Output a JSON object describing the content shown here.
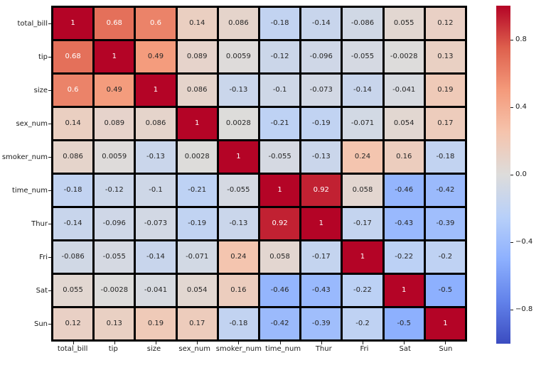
{
  "chart_data": {
    "type": "heatmap",
    "title": "",
    "xlabel": "",
    "ylabel": "",
    "labels": [
      "total_bill",
      "tip",
      "size",
      "sex_num",
      "smoker_num",
      "time_num",
      "Thur",
      "Fri",
      "Sat",
      "Sun"
    ],
    "matrix": [
      [
        1,
        0.68,
        0.6,
        0.14,
        0.086,
        -0.18,
        -0.14,
        -0.086,
        0.055,
        0.12
      ],
      [
        0.68,
        1,
        0.49,
        0.089,
        0.0059,
        -0.12,
        -0.096,
        -0.055,
        -0.0028,
        0.13
      ],
      [
        0.6,
        0.49,
        1,
        0.086,
        -0.13,
        -0.1,
        -0.073,
        -0.14,
        -0.041,
        0.19
      ],
      [
        0.14,
        0.089,
        0.086,
        1,
        0.0028,
        -0.21,
        -0.19,
        -0.071,
        0.054,
        0.17
      ],
      [
        0.086,
        0.0059,
        -0.13,
        0.0028,
        1,
        -0.055,
        -0.13,
        0.24,
        0.16,
        -0.18
      ],
      [
        -0.18,
        -0.12,
        -0.1,
        -0.21,
        -0.055,
        1,
        0.92,
        0.058,
        -0.46,
        -0.42
      ],
      [
        -0.14,
        -0.096,
        -0.073,
        -0.19,
        -0.13,
        0.92,
        1,
        -0.17,
        -0.43,
        -0.39
      ],
      [
        -0.086,
        -0.055,
        -0.14,
        -0.071,
        0.24,
        0.058,
        -0.17,
        1,
        -0.22,
        -0.2
      ],
      [
        0.055,
        -0.0028,
        -0.041,
        0.054,
        0.16,
        -0.46,
        -0.43,
        -0.22,
        1,
        -0.5
      ],
      [
        0.12,
        0.13,
        0.19,
        0.17,
        -0.18,
        -0.42,
        -0.39,
        -0.2,
        -0.5,
        1
      ]
    ],
    "vmin": -1,
    "vmax": 1,
    "colormap": "coolwarm",
    "colormap_anchors": [
      {
        "t": 0.0,
        "color": "#3b4cc0"
      },
      {
        "t": 0.125,
        "color": "#6282ea"
      },
      {
        "t": 0.25,
        "color": "#8db0fe"
      },
      {
        "t": 0.375,
        "color": "#b8d0f9"
      },
      {
        "t": 0.5,
        "color": "#dddcdb"
      },
      {
        "t": 0.625,
        "color": "#f5c4ad"
      },
      {
        "t": 0.75,
        "color": "#f49a7b"
      },
      {
        "t": 0.875,
        "color": "#de604d"
      },
      {
        "t": 1.0,
        "color": "#b40426"
      }
    ],
    "grid_line_color": "#000000",
    "grid_line_width": 3,
    "annotation_colors": {
      "dark": "#262626",
      "light": "#ffffff"
    },
    "legend_position": "right-colorbar",
    "colorbar": {
      "ticks": [
        {
          "value": 0.8,
          "label": "0.8"
        },
        {
          "value": 0.4,
          "label": "0.4"
        },
        {
          "value": 0.0,
          "label": "0.0"
        },
        {
          "value": -0.4,
          "label": "−0.4"
        },
        {
          "value": -0.8,
          "label": "−0.8"
        }
      ]
    }
  }
}
